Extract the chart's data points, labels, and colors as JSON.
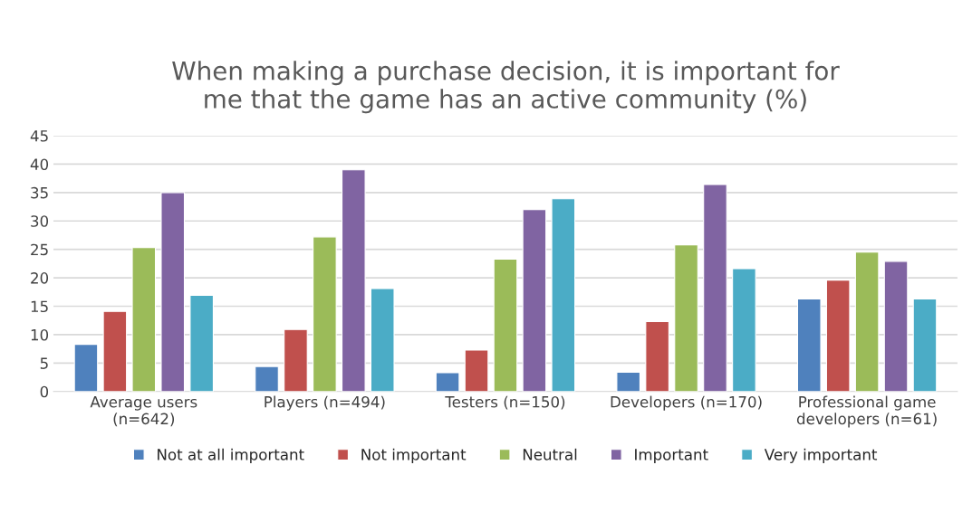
{
  "chart_data": {
    "type": "bar",
    "title": "When making a purchase decision, it is important for\nme that the game has an active community (%)",
    "categories": [
      "Average users\n(n=642)",
      "Players (n=494)",
      "Testers (n=150)",
      "Developers (n=170)",
      "Professional game\ndevelopers (n=61)"
    ],
    "series": [
      {
        "name": "Not at all important",
        "color": "#4f81bd",
        "values": [
          8.3,
          4.4,
          3.3,
          3.4,
          16.3
        ]
      },
      {
        "name": "Not important",
        "color": "#c0504d",
        "values": [
          14.1,
          10.9,
          7.3,
          12.3,
          19.6
        ]
      },
      {
        "name": "Neutral",
        "color": "#9bbb59",
        "values": [
          25.3,
          27.2,
          23.3,
          25.8,
          24.5
        ]
      },
      {
        "name": "Important",
        "color": "#8064a2",
        "values": [
          35.0,
          39.0,
          32.0,
          36.4,
          22.9
        ]
      },
      {
        "name": "Very important",
        "color": "#4bacc6",
        "values": [
          16.9,
          18.1,
          33.9,
          21.6,
          16.3
        ]
      }
    ],
    "ylim": [
      0,
      45
    ],
    "yticks": [
      0,
      5,
      10,
      15,
      20,
      25,
      30,
      35,
      40,
      45
    ],
    "grid": "y",
    "legend": "bottom"
  }
}
